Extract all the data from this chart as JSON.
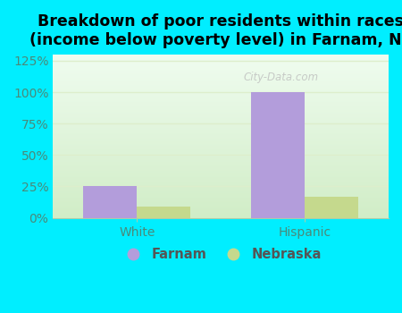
{
  "title": "Breakdown of poor residents within races\n(income below poverty level) in Farnam, NE",
  "categories": [
    "White",
    "Hispanic"
  ],
  "farnam_values": [
    25,
    100
  ],
  "nebraska_values": [
    9,
    17
  ],
  "farnam_color": "#b39ddb",
  "nebraska_color": "#c5d98d",
  "background_outer": "#00eeff",
  "background_inner_top": "#e8f5e0",
  "background_inner_bottom": "#f5fff5",
  "ylim": [
    0,
    130
  ],
  "yticks": [
    0,
    25,
    50,
    75,
    100,
    125
  ],
  "ytick_labels": [
    "0%",
    "25%",
    "50%",
    "75%",
    "100%",
    "125%"
  ],
  "bar_width": 0.32,
  "legend_labels": [
    "Farnam",
    "Nebraska"
  ],
  "title_fontsize": 12.5,
  "tick_fontsize": 10,
  "legend_fontsize": 10.5,
  "tick_color": "#4a8a7a",
  "grid_color": "#ddeecc"
}
